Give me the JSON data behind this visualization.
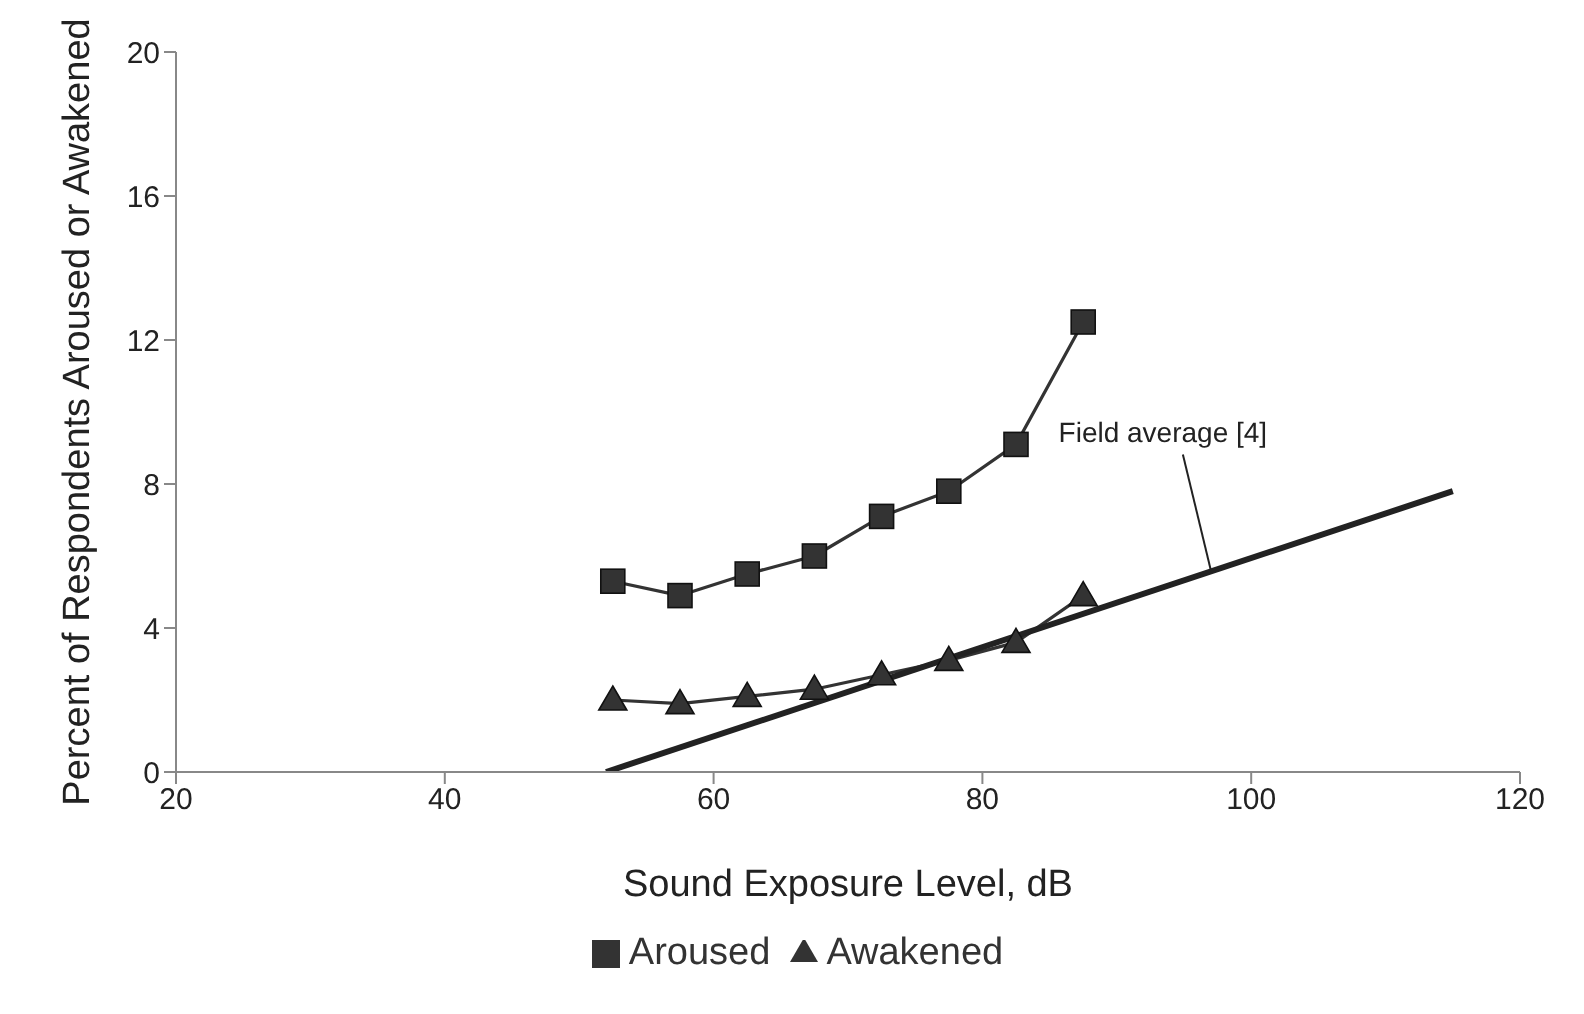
{
  "chart_data": {
    "type": "line",
    "xlabel": "Sound Exposure Level, dB",
    "ylabel": "Percent of Respondents Aroused or Awakened",
    "xlim": [
      20,
      120
    ],
    "xticks": [
      20,
      40,
      60,
      80,
      100,
      120
    ],
    "ylim": [
      0,
      20
    ],
    "yticks": [
      0,
      4,
      8,
      12,
      16,
      20
    ],
    "legend": "bottom",
    "series": [
      {
        "name": "Aroused",
        "color": "#333333",
        "marker": "square",
        "x": [
          52.5,
          57.5,
          62.5,
          67.5,
          72.5,
          77.5,
          82.5,
          87.5
        ],
        "values": [
          5.3,
          4.9,
          5.5,
          6.0,
          7.1,
          7.8,
          9.1,
          12.5
        ]
      },
      {
        "name": "Awakened",
        "color": "#333333",
        "marker": "triangle",
        "x": [
          52.5,
          57.5,
          62.5,
          67.5,
          72.5,
          77.5,
          82.5,
          87.5
        ],
        "values": [
          2.0,
          1.9,
          2.1,
          2.3,
          2.7,
          3.1,
          3.6,
          4.9
        ]
      },
      {
        "color": "#222222",
        "marker": "none",
        "x": [
          52,
          115
        ],
        "values": [
          0,
          7.8
        ]
      }
    ],
    "annotations": [
      {
        "text": "Field average [4]",
        "x": 97,
        "y": 5.6
      }
    ]
  }
}
